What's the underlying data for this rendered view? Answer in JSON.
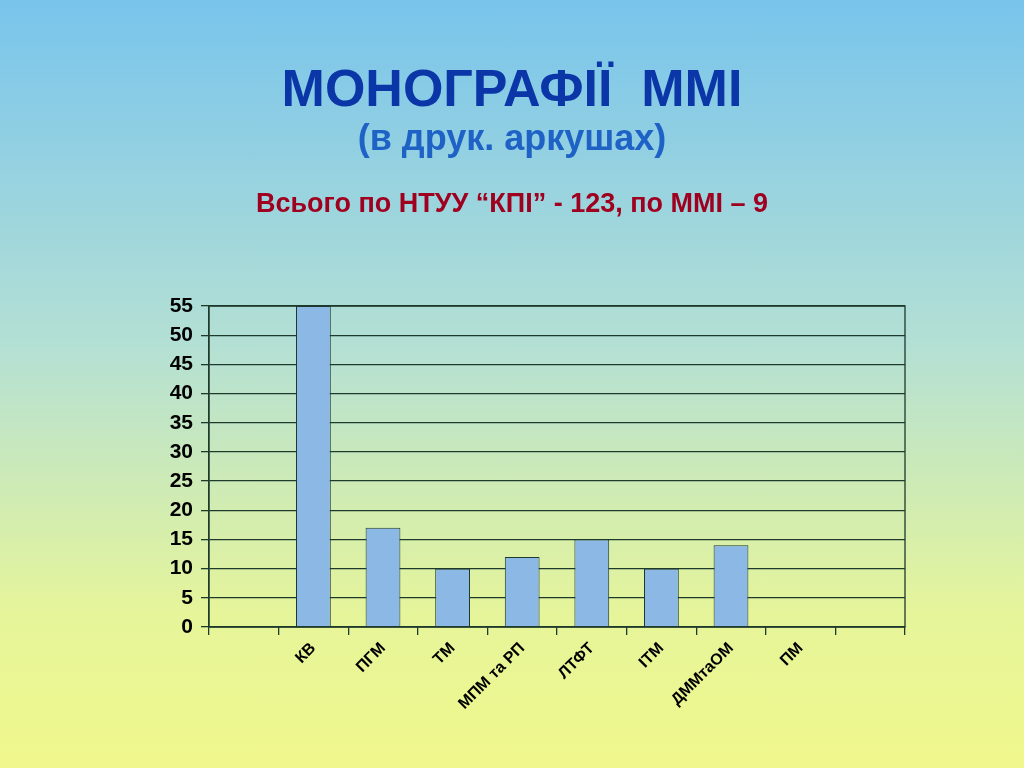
{
  "chart_data": {
    "type": "bar",
    "title": "МОНОГРАФІЇ  ММІ",
    "subtitle": "(в друк. аркушах)",
    "annotations": [
      "Всього по НТУУ “КПІ” - 123, по ММІ – 9"
    ],
    "categories": [
      null,
      "КВ",
      "ПГМ",
      "ТМ",
      "МПМ та РП",
      "ЛТФТ",
      "ІТМ",
      "ДММтаОМ",
      "ПМ",
      null
    ],
    "values": [
      null,
      55,
      17,
      10,
      12,
      15,
      10,
      14,
      0,
      null
    ],
    "color": "#8cb8e6",
    "ylim": [
      0,
      55
    ],
    "yticks": [
      0,
      5,
      10,
      15,
      20,
      25,
      30,
      35,
      40,
      45,
      50,
      55
    ],
    "grid": "y"
  }
}
